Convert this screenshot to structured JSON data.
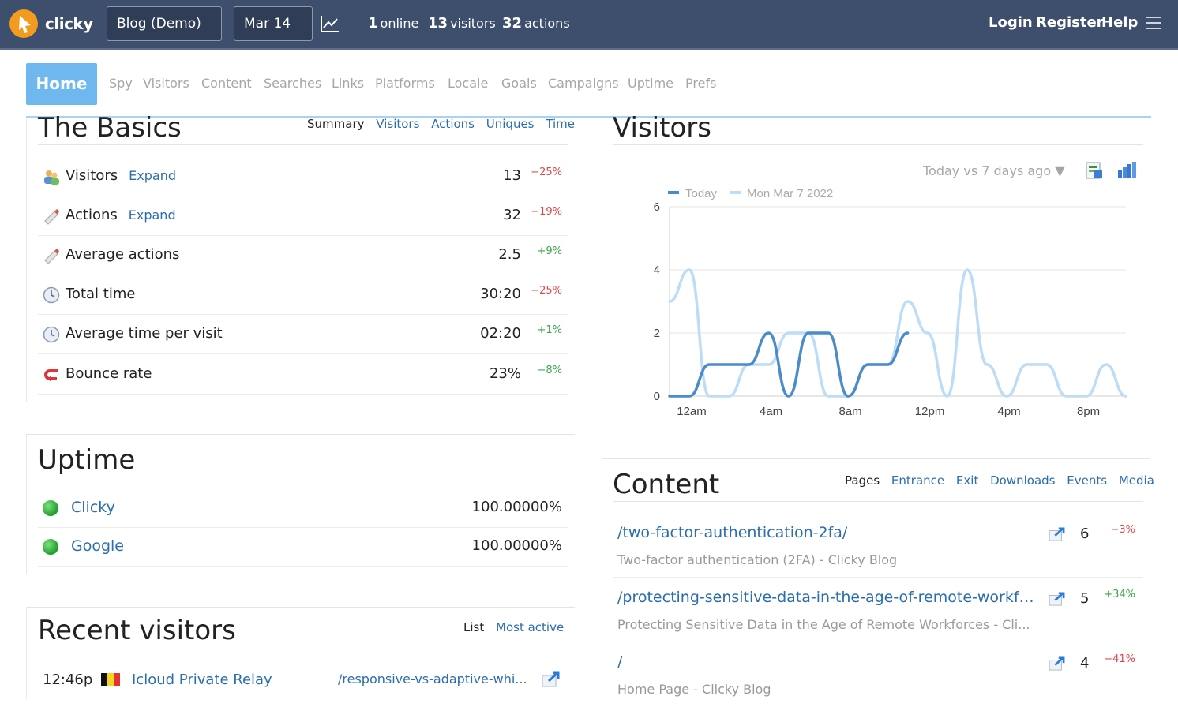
{
  "header": {
    "logo_text": "clicky",
    "site_selector": "Blog (Demo) ▼",
    "date_selector": "Mar 14 ▼",
    "stats": [
      {
        "value": "1",
        "label": "online"
      },
      {
        "value": "13",
        "label": "visitors"
      },
      {
        "value": "32",
        "label": "actions"
      }
    ],
    "links": [
      "Login",
      "Register",
      "Help"
    ]
  },
  "nav": {
    "active": "Home",
    "items": [
      "Spy",
      "Visitors",
      "Content",
      "Searches",
      "Links",
      "Platforms",
      "Locale",
      "Goals",
      "Campaigns",
      "Uptime",
      "Prefs"
    ]
  },
  "basics": {
    "title": "The Basics",
    "tabs": [
      "Summary",
      "Visitors",
      "Actions",
      "Uniques",
      "Time"
    ],
    "rows": [
      {
        "label": "Visitors",
        "expand": "Expand",
        "value": "13",
        "change": "−25%",
        "icon": "visitors-icon"
      },
      {
        "label": "Actions",
        "expand": "Expand",
        "value": "32",
        "change": "−19%",
        "icon": "actions-icon"
      },
      {
        "label": "Average actions",
        "value": "2.5",
        "change": "+9%",
        "icon": "actions-icon"
      },
      {
        "label": "Total time",
        "value": "30:20",
        "change": "−25%",
        "icon": "clock-icon"
      },
      {
        "label": "Average time per visit",
        "value": "02:20",
        "change": "+1%",
        "icon": "clock-icon"
      },
      {
        "label": "Bounce rate",
        "value": "23%",
        "change": "−8%",
        "icon": "bounce-icon"
      }
    ]
  },
  "uptime": {
    "title": "Uptime",
    "rows": [
      {
        "name": "Clicky",
        "pct": "100.00000%"
      },
      {
        "name": "Google",
        "pct": "100.00000%"
      }
    ]
  },
  "recent": {
    "title": "Recent visitors",
    "tabs": [
      "List",
      "Most active"
    ],
    "rows": [
      {
        "time": "12:46p",
        "org": "Icloud Private Relay",
        "path": "/responsive-vs-adaptive-whi..."
      }
    ]
  },
  "visitors_chart": {
    "title": "Visitors",
    "compare_selector": "Today vs 7 days ago ▼"
  },
  "chart_data": {
    "type": "line",
    "title": "",
    "legend_position": "top-left",
    "xlim": [
      0,
      23
    ],
    "ylim": [
      0,
      6
    ],
    "y_ticks": [
      0,
      2,
      4,
      6
    ],
    "x_ticks": [
      {
        "x": 0,
        "label": "12am"
      },
      {
        "x": 4,
        "label": "4am"
      },
      {
        "x": 8,
        "label": "8am"
      },
      {
        "x": 12,
        "label": "12pm"
      },
      {
        "x": 16,
        "label": "4pm"
      },
      {
        "x": 20,
        "label": "8pm"
      }
    ],
    "grid": true,
    "series": [
      {
        "name": "Mon Mar 7 2022",
        "color": "#bcdcf7",
        "x": [
          0,
          1,
          2,
          3,
          4,
          5,
          6,
          7,
          8,
          9,
          10,
          11,
          12,
          13,
          14,
          15,
          16,
          17,
          18,
          19,
          20,
          21,
          22,
          23
        ],
        "y": [
          3,
          4,
          0,
          0,
          1,
          1,
          2,
          2,
          0,
          0,
          1,
          1,
          3,
          2,
          0,
          4,
          1,
          0,
          1,
          1,
          0,
          0,
          1,
          0
        ]
      },
      {
        "name": "Today",
        "color": "#4a8bcb",
        "x": [
          0,
          1,
          2,
          3,
          4,
          5,
          6,
          7,
          8,
          9,
          10,
          11,
          12
        ],
        "y": [
          0,
          0,
          1,
          1,
          1,
          2,
          0,
          2,
          2,
          0,
          1,
          1,
          2
        ]
      }
    ]
  },
  "content": {
    "title": "Content",
    "tabs": [
      "Pages",
      "Entrance",
      "Exit",
      "Downloads",
      "Events",
      "Media"
    ],
    "rows": [
      {
        "path": "/two-factor-authentication-2fa/",
        "title": "Two-factor authentication (2FA) - Clicky Blog",
        "count": "6",
        "change": "−3%"
      },
      {
        "path": "/protecting-sensitive-data-in-the-age-of-remote-workforc...",
        "title": "Protecting Sensitive Data in the Age of Remote Workforces - Cli...",
        "count": "5",
        "change": "+34%"
      },
      {
        "path": "/",
        "title": "Home Page - Clicky Blog",
        "count": "4",
        "change": "−41%"
      }
    ]
  }
}
